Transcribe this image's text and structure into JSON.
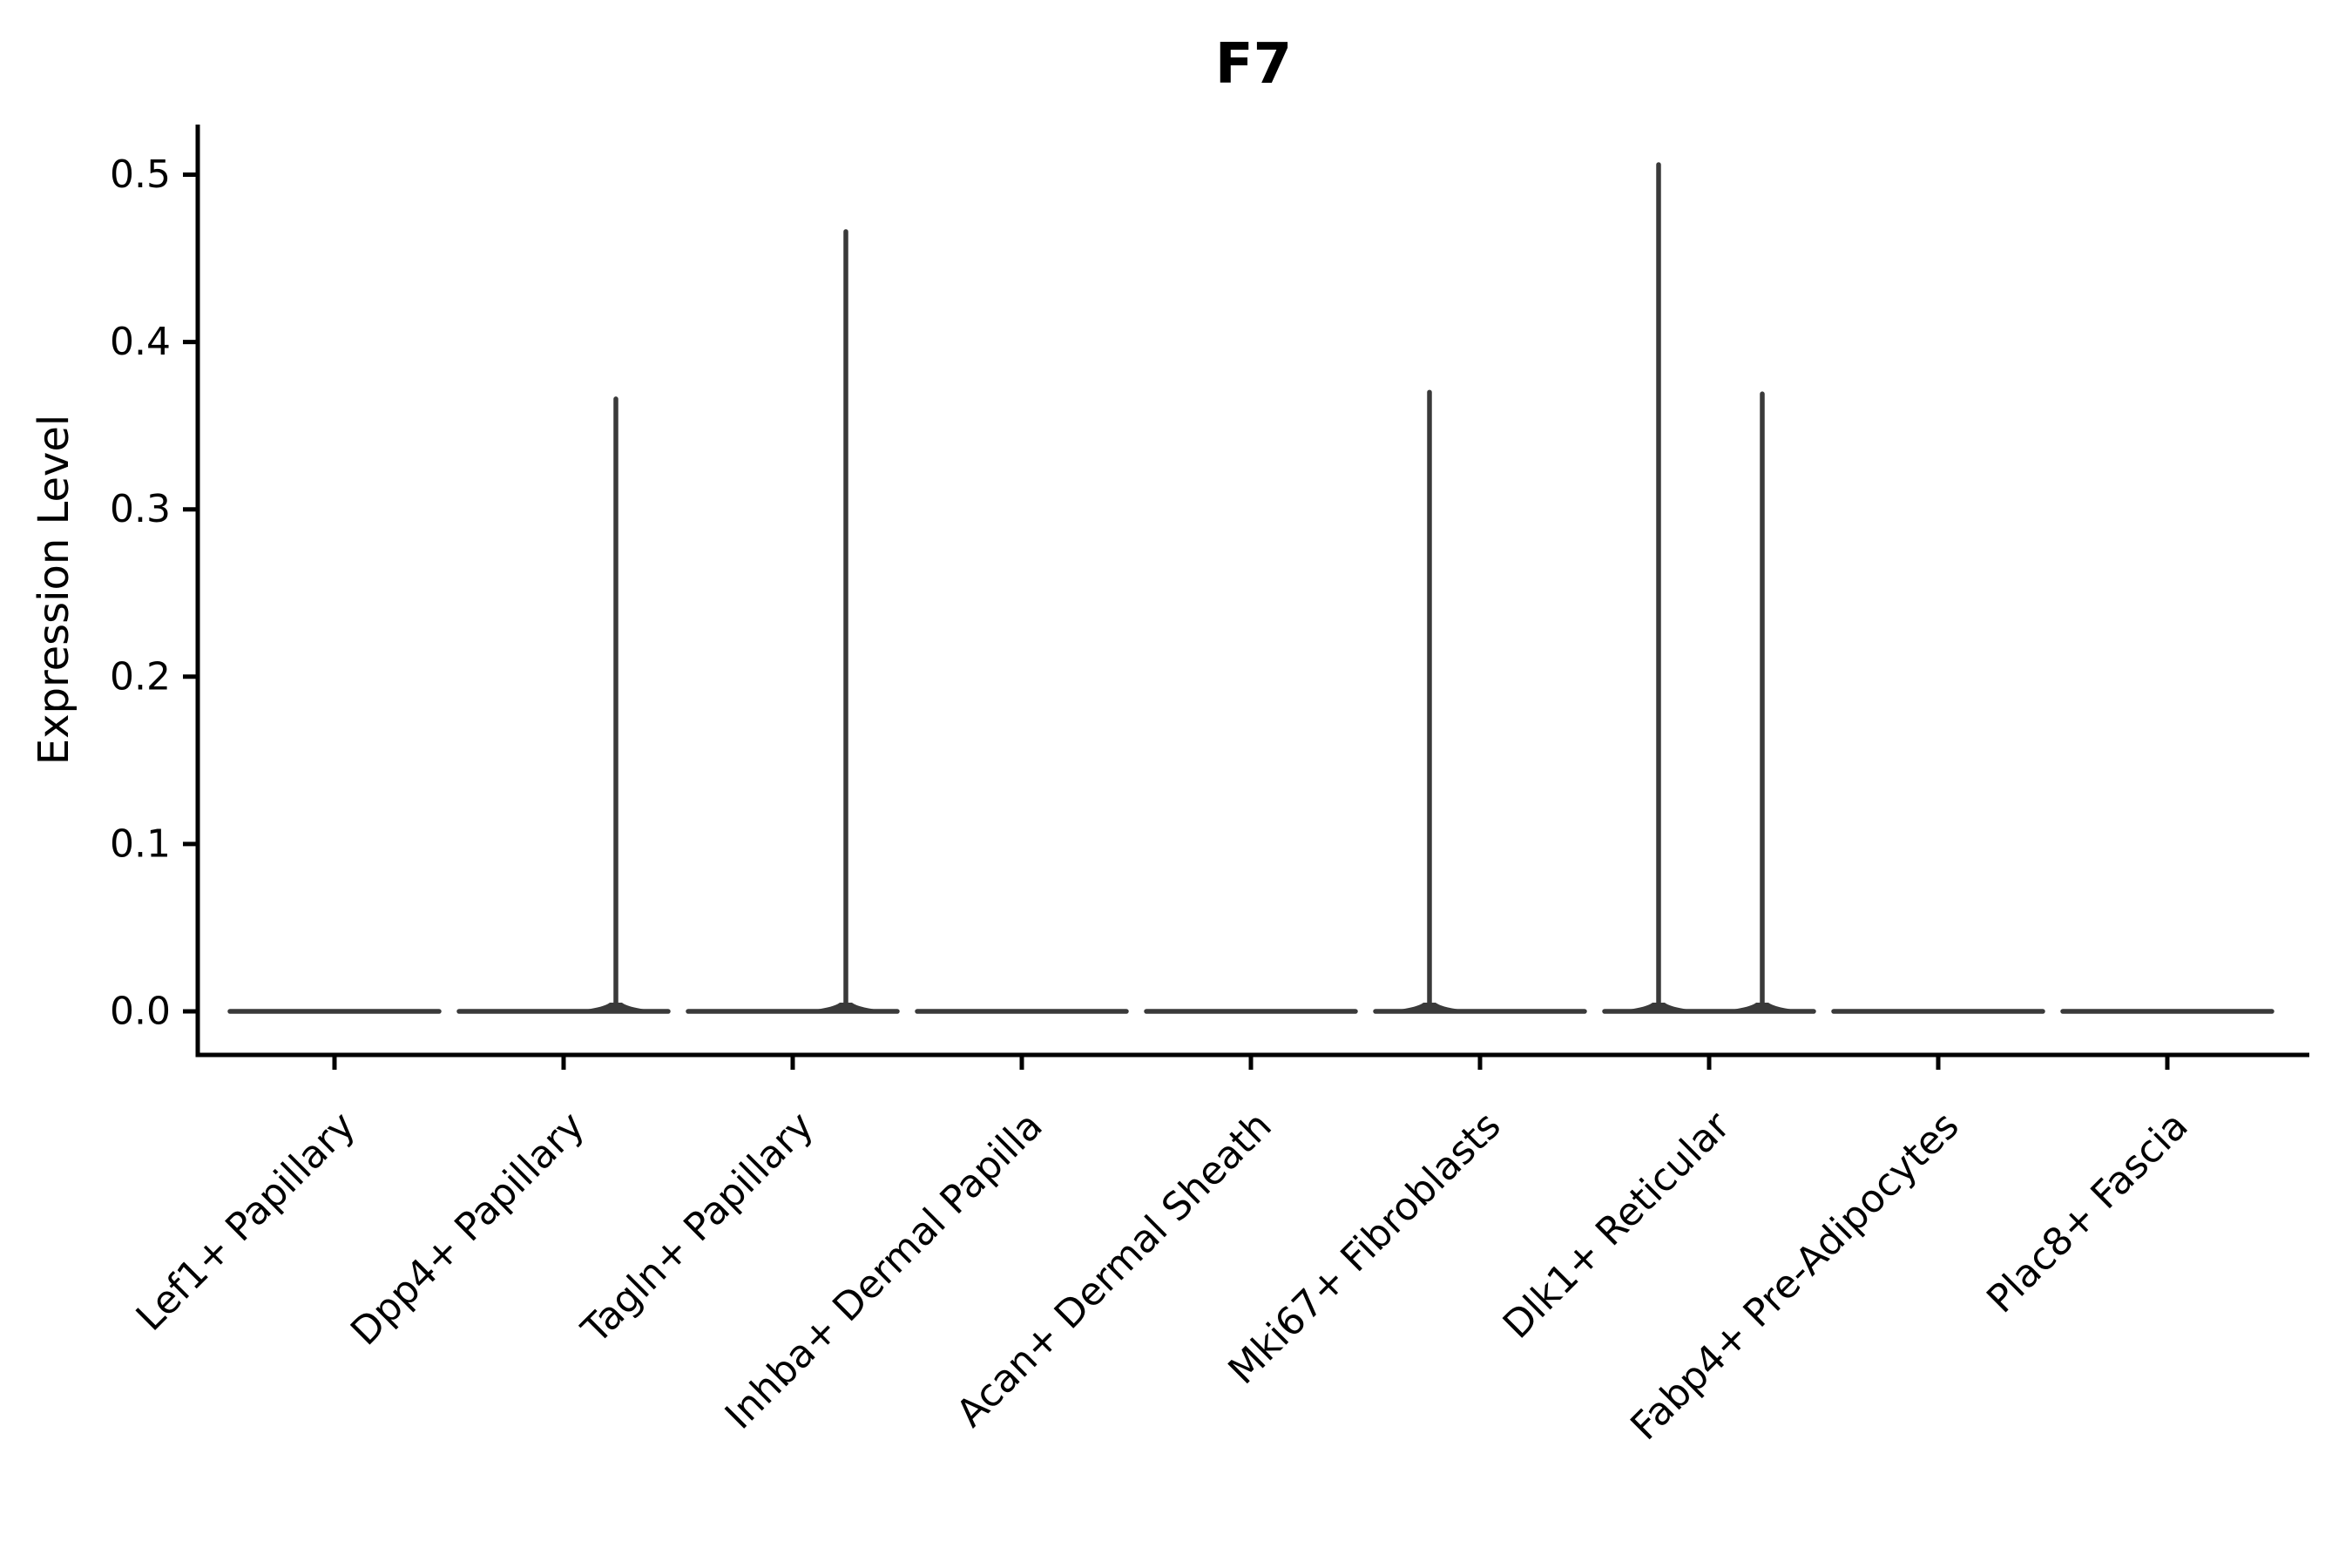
{
  "figure": {
    "title": "F7",
    "y_axis_label": "Expression Level"
  },
  "chart_data": {
    "type": "violin",
    "title": "F7",
    "xlabel": "",
    "ylabel": "Expression Level",
    "ylim": [
      -0.026,
      0.53
    ],
    "yticks": [
      "0.0",
      "0.1",
      "0.2",
      "0.3",
      "0.4",
      "0.5"
    ],
    "grid": false,
    "legend": "none",
    "background": "#ffffff",
    "description": "Violin plot of F7 expression across fibroblast subpopulations. Nearly all cells express 0 (violins collapse to flat horizontal lines at 0); a few populations show thin vertical density tails up to the listed maxima.",
    "baseline_value": 0.0,
    "categories": [
      {
        "label": "Lef1+ Papillary",
        "median": 0.0,
        "max_expression": 0.0,
        "spikes": []
      },
      {
        "label": "Dpp4+ Papillary",
        "median": 0.0,
        "max_expression": 0.366,
        "spikes": [
          {
            "dx": 60,
            "value": 0.366
          }
        ]
      },
      {
        "label": "Tagln+ Papillary",
        "median": 0.0,
        "max_expression": 0.466,
        "spikes": [
          {
            "dx": 61,
            "value": 0.466
          }
        ]
      },
      {
        "label": "Inhba+ Dermal Papilla",
        "median": 0.0,
        "max_expression": 0.0,
        "spikes": []
      },
      {
        "label": "Acan+ Dermal Sheath",
        "median": 0.0,
        "max_expression": 0.0,
        "spikes": []
      },
      {
        "label": "Mki67+ Fibroblasts",
        "median": 0.0,
        "max_expression": 0.37,
        "spikes": [
          {
            "dx": -58,
            "value": 0.37
          }
        ]
      },
      {
        "label": "Dlk1+ Reticular",
        "median": 0.0,
        "max_expression": 0.506,
        "spikes": [
          {
            "dx": -58,
            "value": 0.506
          },
          {
            "dx": 61,
            "value": 0.369
          }
        ]
      },
      {
        "label": "Fabp4+ Pre-Adipocytes",
        "median": 0.0,
        "max_expression": 0.0,
        "spikes": []
      },
      {
        "label": "Plac8+ Fascia",
        "median": 0.0,
        "max_expression": 0.0,
        "spikes": []
      }
    ],
    "colors": {
      "violin": "#3a3a3a",
      "axis": "#000000",
      "text": "#000000",
      "background": "#ffffff"
    }
  }
}
